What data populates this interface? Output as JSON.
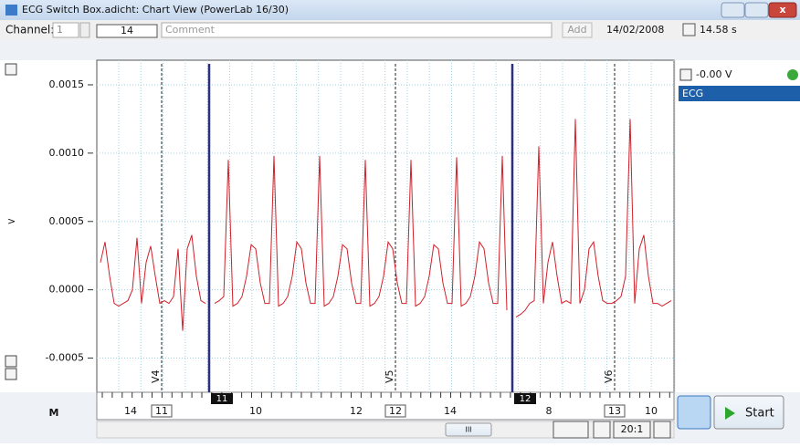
{
  "window": {
    "title": "ECG Switch Box.adicht: Chart View (PowerLab 16/30)"
  },
  "toolbar": {
    "channel_label": "Channel:",
    "channel": "1",
    "block": "14",
    "comment": "Comment",
    "add": "Add",
    "date": "14/02/2008",
    "duration": "14.58 s"
  },
  "channel_panel": {
    "reading": "-0.00 V"
  },
  "chart_data": {
    "type": "line",
    "axis_button": ">",
    "ylim": [
      -0.00075,
      0.00168
    ],
    "yticks": [
      0.0015,
      {
        "value": 0.001,
        "label": "0.0010"
      },
      0.0005,
      {
        "value": 0,
        "label": "0.0000"
      },
      -0.0005
    ],
    "grid": true,
    "series": [
      {
        "name": "ECG",
        "color": "#d0202a",
        "values": [
          0.0002,
          0.00035,
          0.0001,
          -0.0001,
          -0.00012,
          -0.0001,
          -8e-05,
          0.0,
          0.00038,
          -0.0001,
          0.0002,
          0.00032,
          0.0001,
          -0.0001,
          -8e-05,
          -0.0001,
          -5e-05,
          0.0003,
          -0.0003,
          0.0003,
          0.0004,
          0.0001,
          -8e-05,
          -0.0001,
          null,
          -0.0001,
          -8e-05,
          -5e-05,
          0.00095,
          -0.00012,
          -0.0001,
          -5e-05,
          0.0001,
          0.00033,
          0.0003,
          5e-05,
          -0.0001,
          -0.0001,
          0.00098,
          -0.00012,
          -0.0001,
          -5e-05,
          0.0001,
          0.00035,
          0.0003,
          5e-05,
          -0.0001,
          -0.0001,
          0.00098,
          -0.00012,
          -0.0001,
          -5e-05,
          0.0001,
          0.00033,
          0.0003,
          5e-05,
          -0.0001,
          -0.0001,
          0.00095,
          -0.00012,
          -0.0001,
          -5e-05,
          0.0001,
          0.00035,
          0.0003,
          5e-05,
          -0.0001,
          -0.0001,
          0.00095,
          -0.00012,
          -0.0001,
          -5e-05,
          0.0001,
          0.00033,
          0.0003,
          5e-05,
          -0.0001,
          -0.0001,
          0.00097,
          -0.00012,
          -0.0001,
          -5e-05,
          0.0001,
          0.00035,
          0.0003,
          5e-05,
          -0.0001,
          -0.0001,
          0.00098,
          -0.00015,
          null,
          -0.0002,
          -0.00018,
          -0.00015,
          -0.0001,
          -8e-05,
          0.00105,
          -0.0001,
          0.0002,
          0.00035,
          0.0001,
          -0.0001,
          -8e-05,
          -0.0001,
          0.00125,
          -0.0001,
          0.0,
          0.0003,
          0.00035,
          0.0001,
          -8e-05,
          -0.0001,
          -0.0001,
          -8e-05,
          -5e-05,
          0.0001,
          0.00125,
          -0.0001,
          0.0003,
          0.0004,
          0.0001,
          -0.0001,
          -0.0001,
          -0.00012,
          -0.0001,
          -8e-05
        ]
      }
    ],
    "comments": [
      "V4",
      "V5",
      "V6"
    ]
  },
  "ruler": {
    "times": [
      "14",
      "10",
      "12",
      "14",
      "8",
      "10"
    ],
    "comment_numbers": [
      "11",
      "12",
      "13"
    ],
    "blocks": [
      "11",
      "12"
    ]
  },
  "footer": {
    "m": "M",
    "grip": "III",
    "ratio": "20:1",
    "start": "Start"
  }
}
